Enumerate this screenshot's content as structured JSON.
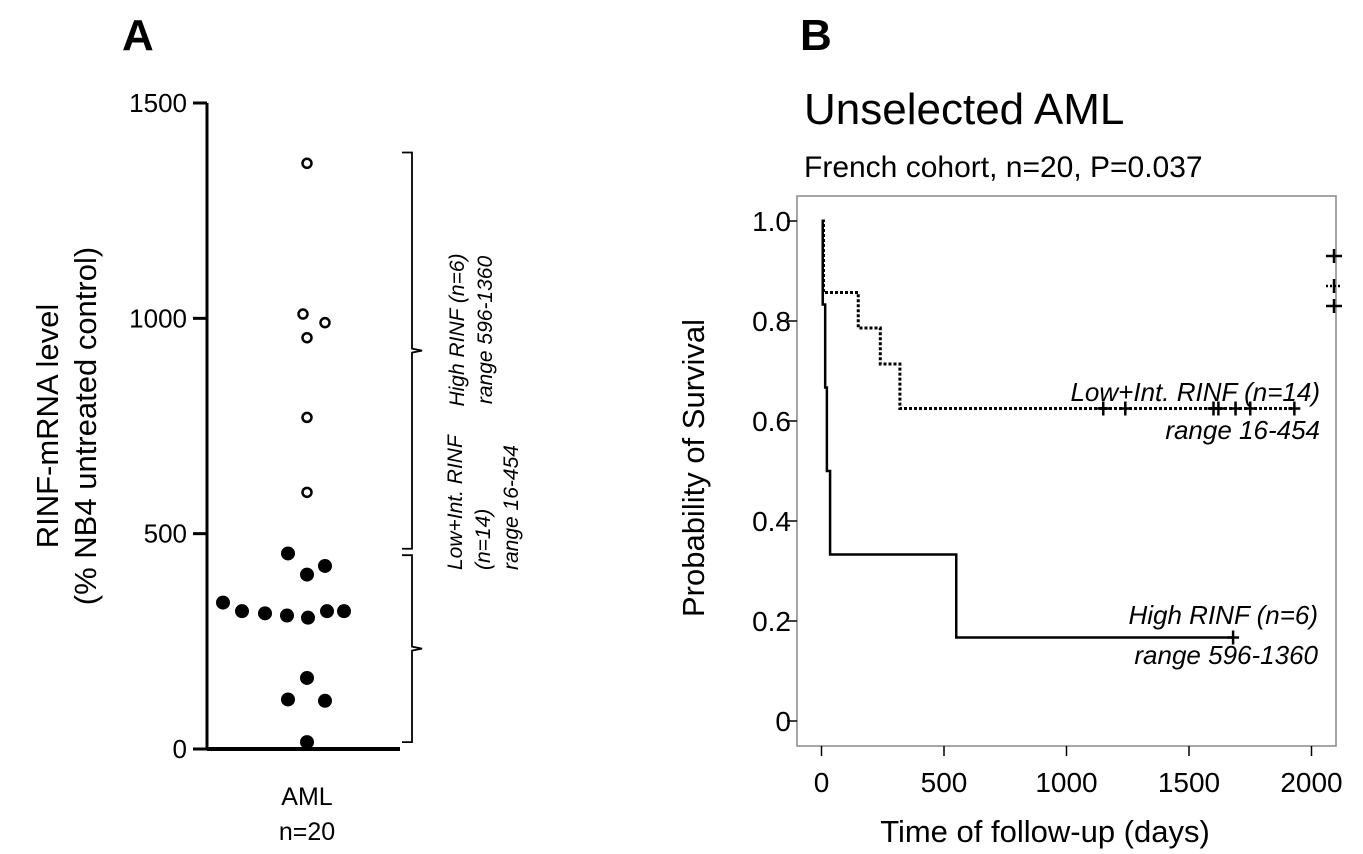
{
  "chart_data": [
    {
      "panel": "A",
      "type": "scatter",
      "ylabel_line1": "RINF-mRNA  level",
      "ylabel_line2": "(% NB4 untreated control)",
      "ylim": [
        0,
        1500
      ],
      "yticks": [
        0,
        500,
        1000,
        1500
      ],
      "category_line1": "AML",
      "category_line2": "n=20",
      "series": [
        {
          "group": "high",
          "marker": "open-circle",
          "values": [
            1360,
            1010,
            990,
            955,
            770,
            596
          ]
        },
        {
          "group": "low",
          "marker": "filled-circle",
          "values": [
            454,
            425,
            405,
            340,
            320,
            315,
            310,
            305,
            320,
            320,
            165,
            115,
            112,
            16
          ]
        }
      ],
      "annotations": {
        "high_line1": "High RINF  (n=6)",
        "high_line2": "range 596-1360",
        "low_line1": "Low+Int. RINF",
        "low_line2": "(n=14)",
        "low_line3": "range 16-454"
      }
    },
    {
      "panel": "B",
      "type": "line",
      "title": "Unselected AML",
      "subtitle": "French cohort, n=20, P=0.037",
      "xlabel": "Time of follow-up (days)",
      "ylabel": "Probability of Survival",
      "xlim": [
        -100,
        2100
      ],
      "ylim": [
        -0.05,
        1.05
      ],
      "xticks": [
        0,
        500,
        1000,
        1500,
        2000
      ],
      "yticks": [
        {
          "value": 1.0,
          "label": "1.0"
        },
        {
          "value": 0.8,
          "label": "0.8"
        },
        {
          "value": 0.6,
          "label": "0.6"
        },
        {
          "value": 0.4,
          "label": "0.4"
        },
        {
          "value": 0.2,
          "label": "0.2"
        },
        {
          "value": 0.0,
          "label": "0"
        }
      ],
      "series": [
        {
          "group": "low",
          "style": "dotted",
          "steps": [
            [
              0,
              1.0
            ],
            [
              8,
              0.857
            ],
            [
              150,
              0.786
            ],
            [
              240,
              0.714
            ],
            [
              320,
              0.625
            ],
            [
              1930,
              0.625
            ]
          ],
          "censored": [
            1150,
            1240,
            1600,
            1620,
            1690,
            1750,
            1930
          ],
          "label_line1": "Low+Int. RINF (n=14)",
          "label_line2": "range 16-454"
        },
        {
          "group": "high",
          "style": "solid",
          "steps": [
            [
              0,
              1.0
            ],
            [
              5,
              0.833
            ],
            [
              15,
              0.667
            ],
            [
              22,
              0.5
            ],
            [
              35,
              0.333
            ],
            [
              550,
              0.333
            ],
            [
              550,
              0.167
            ],
            [
              1680,
              0.167
            ]
          ],
          "censored": [
            1680
          ],
          "label_line1": "High RINF (n=6)",
          "label_line2": "range 596-1360"
        }
      ],
      "legend_marks": [
        {
          "style": "solid",
          "value": 0.93
        },
        {
          "style": "dotted",
          "value": 0.87
        },
        {
          "style": "solid",
          "value": 0.83
        }
      ]
    }
  ]
}
